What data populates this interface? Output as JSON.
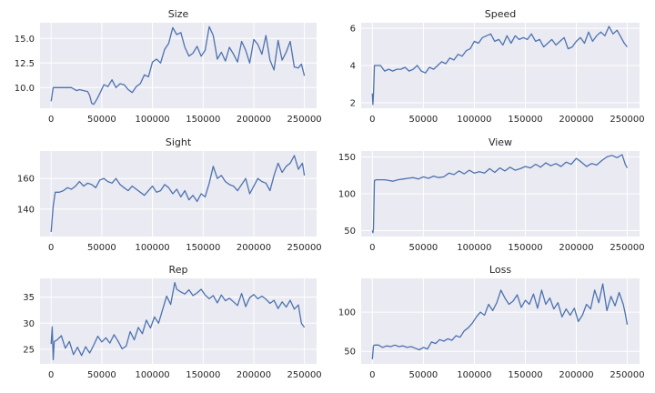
{
  "style": {
    "line_color": "#4c72b0",
    "panel_bg": "#eaeaf2",
    "grid_color": "#ffffff",
    "text_color": "#262626"
  },
  "chart_data": [
    {
      "type": "line",
      "title": "Size",
      "xlabel": "",
      "ylabel": "",
      "xlim": [
        -11000,
        262000
      ],
      "ylim": [
        7.9,
        16.6
      ],
      "xticks": [
        0,
        50000,
        100000,
        150000,
        200000,
        250000
      ],
      "xtick_labels": [
        "0",
        "50000",
        "100000",
        "150000",
        "200000",
        "250000"
      ],
      "yticks": [
        10.0,
        12.5,
        15.0
      ],
      "ytick_labels": [
        "10.0",
        "12.5",
        "15.0"
      ],
      "grid": true,
      "series": [
        {
          "x": [
            0,
            2000,
            5000,
            10000,
            15000,
            20000,
            25000,
            28000,
            32000,
            36000,
            38000,
            40000,
            42000,
            45000,
            48000,
            52000,
            56000,
            60000,
            64000,
            68000,
            72000,
            76000,
            80000,
            84000,
            88000,
            92000,
            96000,
            100000,
            104000,
            108000,
            112000,
            116000,
            120000,
            124000,
            128000,
            132000,
            136000,
            140000,
            144000,
            148000,
            152000,
            156000,
            160000,
            164000,
            168000,
            172000,
            176000,
            180000,
            184000,
            188000,
            192000,
            196000,
            200000,
            204000,
            208000,
            212000,
            216000,
            220000,
            224000,
            228000,
            232000,
            236000,
            240000,
            244000,
            247000,
            250000
          ],
          "y": [
            8.6,
            10.0,
            10.0,
            10.0,
            10.0,
            10.0,
            9.7,
            9.8,
            9.7,
            9.6,
            9.2,
            8.4,
            8.3,
            8.8,
            9.4,
            10.3,
            10.1,
            10.8,
            10.0,
            10.4,
            10.3,
            9.8,
            9.5,
            10.1,
            10.4,
            11.3,
            11.1,
            12.6,
            12.9,
            12.5,
            13.9,
            14.5,
            16.1,
            15.4,
            15.6,
            14.1,
            13.2,
            13.5,
            14.2,
            13.2,
            13.8,
            16.2,
            15.3,
            12.9,
            13.6,
            12.7,
            14.1,
            13.4,
            12.6,
            14.7,
            13.8,
            12.5,
            14.9,
            14.4,
            13.4,
            15.3,
            12.8,
            11.8,
            14.8,
            12.8,
            13.6,
            14.7,
            12.1,
            12.0,
            12.4,
            11.2
          ]
        }
      ]
    },
    {
      "type": "line",
      "title": "Speed",
      "xlabel": "",
      "ylabel": "",
      "xlim": [
        -11000,
        262000
      ],
      "ylim": [
        1.7,
        6.3
      ],
      "xticks": [
        0,
        50000,
        100000,
        150000,
        200000,
        250000
      ],
      "xtick_labels": [
        "0",
        "50000",
        "100000",
        "150000",
        "200000",
        "250000"
      ],
      "yticks": [
        2,
        4,
        6
      ],
      "ytick_labels": [
        "2",
        "4",
        "6"
      ],
      "grid": true,
      "series": [
        {
          "x": [
            0,
            500,
            1000,
            2000,
            4000,
            8000,
            12000,
            16000,
            20000,
            24000,
            28000,
            32000,
            36000,
            40000,
            44000,
            48000,
            52000,
            56000,
            60000,
            64000,
            68000,
            72000,
            76000,
            80000,
            84000,
            88000,
            92000,
            96000,
            100000,
            104000,
            108000,
            112000,
            116000,
            120000,
            124000,
            128000,
            132000,
            136000,
            140000,
            144000,
            148000,
            152000,
            156000,
            160000,
            164000,
            168000,
            172000,
            176000,
            180000,
            184000,
            188000,
            192000,
            196000,
            200000,
            204000,
            208000,
            212000,
            216000,
            220000,
            224000,
            228000,
            232000,
            236000,
            240000,
            244000,
            247000,
            250000
          ],
          "y": [
            2.5,
            1.9,
            2.4,
            4.0,
            4.0,
            4.0,
            3.7,
            3.8,
            3.7,
            3.8,
            3.8,
            3.9,
            3.7,
            3.8,
            4.0,
            3.7,
            3.6,
            3.9,
            3.8,
            4.0,
            4.2,
            4.1,
            4.4,
            4.3,
            4.6,
            4.5,
            4.8,
            4.9,
            5.3,
            5.2,
            5.5,
            5.6,
            5.7,
            5.3,
            5.4,
            5.1,
            5.6,
            5.2,
            5.6,
            5.4,
            5.5,
            5.4,
            5.7,
            5.3,
            5.4,
            5.0,
            5.2,
            5.4,
            5.1,
            5.3,
            5.5,
            4.9,
            5.0,
            5.3,
            5.5,
            5.2,
            5.8,
            5.3,
            5.6,
            5.8,
            5.6,
            6.1,
            5.7,
            5.9,
            5.5,
            5.2,
            5.0
          ]
        }
      ]
    },
    {
      "type": "line",
      "title": "Sight",
      "xlabel": "",
      "ylabel": "",
      "xlim": [
        -11000,
        262000
      ],
      "ylim": [
        122,
        178
      ],
      "xticks": [
        0,
        50000,
        100000,
        150000,
        200000,
        250000
      ],
      "xtick_labels": [
        "0",
        "50000",
        "100000",
        "150000",
        "200000",
        "250000"
      ],
      "yticks": [
        140,
        160
      ],
      "ytick_labels": [
        "140",
        "160"
      ],
      "grid": true,
      "series": [
        {
          "x": [
            0,
            2000,
            4000,
            8000,
            12000,
            16000,
            20000,
            24000,
            28000,
            32000,
            36000,
            40000,
            44000,
            48000,
            52000,
            56000,
            60000,
            64000,
            68000,
            72000,
            76000,
            80000,
            84000,
            88000,
            92000,
            96000,
            100000,
            104000,
            108000,
            112000,
            116000,
            120000,
            124000,
            128000,
            132000,
            136000,
            140000,
            144000,
            148000,
            152000,
            156000,
            160000,
            164000,
            168000,
            172000,
            176000,
            180000,
            184000,
            188000,
            192000,
            196000,
            200000,
            204000,
            208000,
            212000,
            216000,
            220000,
            224000,
            228000,
            232000,
            236000,
            240000,
            244000,
            248000,
            250000
          ],
          "y": [
            125,
            142,
            151,
            151,
            152,
            154,
            153,
            155,
            158,
            155,
            157,
            156,
            154,
            159,
            160,
            158,
            157,
            160,
            156,
            154,
            152,
            155,
            153,
            151,
            149,
            152,
            155,
            151,
            152,
            156,
            154,
            150,
            153,
            148,
            152,
            146,
            149,
            145,
            150,
            148,
            157,
            168,
            160,
            162,
            158,
            156,
            155,
            152,
            156,
            160,
            150,
            155,
            160,
            158,
            157,
            152,
            162,
            170,
            164,
            168,
            170,
            175,
            166,
            170,
            162
          ]
        }
      ]
    },
    {
      "type": "line",
      "title": "View",
      "xlabel": "",
      "ylabel": "",
      "xlim": [
        -11000,
        262000
      ],
      "ylim": [
        42,
        158
      ],
      "xticks": [
        0,
        50000,
        100000,
        150000,
        200000,
        250000
      ],
      "xtick_labels": [
        "0",
        "50000",
        "100000",
        "150000",
        "200000",
        "250000"
      ],
      "yticks": [
        50,
        100,
        150
      ],
      "ytick_labels": [
        "50",
        "100",
        "150"
      ],
      "grid": true,
      "series": [
        {
          "x": [
            0,
            500,
            1000,
            2000,
            4000,
            8000,
            12000,
            16000,
            20000,
            25000,
            30000,
            35000,
            40000,
            45000,
            50000,
            55000,
            60000,
            65000,
            70000,
            75000,
            80000,
            85000,
            90000,
            95000,
            100000,
            105000,
            110000,
            115000,
            120000,
            125000,
            130000,
            135000,
            140000,
            145000,
            150000,
            155000,
            160000,
            165000,
            170000,
            175000,
            180000,
            185000,
            190000,
            195000,
            200000,
            205000,
            210000,
            215000,
            220000,
            225000,
            230000,
            235000,
            240000,
            245000,
            248000,
            250000
          ],
          "y": [
            50,
            47,
            52,
            118,
            119,
            119,
            119,
            118,
            117,
            119,
            120,
            121,
            122,
            120,
            123,
            121,
            124,
            122,
            123,
            128,
            126,
            131,
            127,
            132,
            128,
            130,
            128,
            134,
            129,
            135,
            131,
            136,
            132,
            134,
            137,
            135,
            140,
            136,
            142,
            138,
            141,
            137,
            143,
            140,
            148,
            143,
            137,
            141,
            139,
            145,
            150,
            152,
            149,
            153,
            140,
            135
          ]
        }
      ]
    },
    {
      "type": "line",
      "title": "Rep",
      "xlabel": "",
      "ylabel": "",
      "xlim": [
        -11000,
        262000
      ],
      "ylim": [
        22.2,
        38.6
      ],
      "xticks": [
        0,
        50000,
        100000,
        150000,
        200000,
        250000
      ],
      "xtick_labels": [
        "0",
        "50000",
        "100000",
        "150000",
        "200000",
        "250000"
      ],
      "yticks": [
        25,
        30,
        35
      ],
      "ytick_labels": [
        "25",
        "30",
        "35"
      ],
      "grid": true,
      "series": [
        {
          "x": [
            0,
            1000,
            2000,
            3000,
            6000,
            10000,
            14000,
            18000,
            22000,
            26000,
            30000,
            34000,
            38000,
            42000,
            46000,
            50000,
            54000,
            58000,
            62000,
            66000,
            70000,
            74000,
            78000,
            82000,
            86000,
            90000,
            94000,
            98000,
            102000,
            106000,
            110000,
            114000,
            118000,
            122000,
            124000,
            128000,
            132000,
            136000,
            140000,
            144000,
            148000,
            152000,
            156000,
            160000,
            164000,
            168000,
            172000,
            176000,
            180000,
            184000,
            188000,
            192000,
            196000,
            200000,
            204000,
            208000,
            212000,
            216000,
            220000,
            224000,
            228000,
            232000,
            236000,
            240000,
            244000,
            247000,
            250000
          ],
          "y": [
            26.0,
            29.3,
            23.0,
            26.5,
            26.8,
            27.6,
            25.2,
            26.5,
            24.0,
            25.4,
            23.8,
            25.5,
            24.3,
            25.8,
            27.5,
            26.4,
            27.2,
            26.2,
            27.8,
            26.6,
            25.1,
            25.6,
            28.4,
            26.8,
            29.2,
            28.0,
            30.6,
            29.1,
            31.2,
            30.0,
            32.6,
            35.2,
            33.6,
            37.8,
            36.5,
            36.0,
            35.6,
            36.4,
            35.3,
            35.8,
            36.5,
            35.4,
            34.7,
            35.3,
            33.9,
            35.4,
            34.3,
            34.8,
            34.1,
            33.4,
            35.7,
            33.2,
            34.9,
            35.5,
            34.7,
            35.2,
            34.6,
            33.8,
            34.4,
            32.8,
            34.1,
            33.1,
            34.4,
            32.7,
            33.5,
            30.0,
            29.2
          ]
        }
      ]
    },
    {
      "type": "line",
      "title": "Loss",
      "xlabel": "",
      "ylabel": "",
      "xlim": [
        -11000,
        262000
      ],
      "ylim": [
        34,
        143
      ],
      "xticks": [
        0,
        50000,
        100000,
        150000,
        200000,
        250000
      ],
      "xtick_labels": [
        "0",
        "50000",
        "100000",
        "150000",
        "200000",
        "250000"
      ],
      "yticks": [
        50,
        100
      ],
      "ytick_labels": [
        "50",
        "100"
      ],
      "grid": true,
      "series": [
        {
          "x": [
            0,
            1000,
            2000,
            6000,
            10000,
            14000,
            18000,
            22000,
            26000,
            30000,
            34000,
            38000,
            42000,
            46000,
            50000,
            54000,
            58000,
            62000,
            66000,
            70000,
            74000,
            78000,
            82000,
            86000,
            90000,
            94000,
            98000,
            102000,
            106000,
            110000,
            114000,
            118000,
            122000,
            126000,
            130000,
            134000,
            138000,
            142000,
            146000,
            150000,
            154000,
            158000,
            162000,
            166000,
            170000,
            174000,
            178000,
            182000,
            186000,
            190000,
            194000,
            198000,
            202000,
            206000,
            210000,
            214000,
            218000,
            222000,
            226000,
            230000,
            234000,
            238000,
            242000,
            246000,
            248000,
            250000
          ],
          "y": [
            40,
            57,
            58,
            58,
            55,
            57,
            56,
            58,
            56,
            57,
            55,
            56,
            54,
            52,
            55,
            53,
            62,
            60,
            65,
            63,
            66,
            64,
            70,
            68,
            76,
            80,
            86,
            94,
            100,
            96,
            110,
            102,
            112,
            128,
            118,
            110,
            114,
            122,
            106,
            115,
            110,
            123,
            105,
            128,
            110,
            118,
            104,
            112,
            94,
            104,
            96,
            105,
            88,
            96,
            110,
            104,
            128,
            112,
            136,
            102,
            120,
            108,
            125,
            110,
            98,
            84
          ]
        }
      ]
    }
  ]
}
